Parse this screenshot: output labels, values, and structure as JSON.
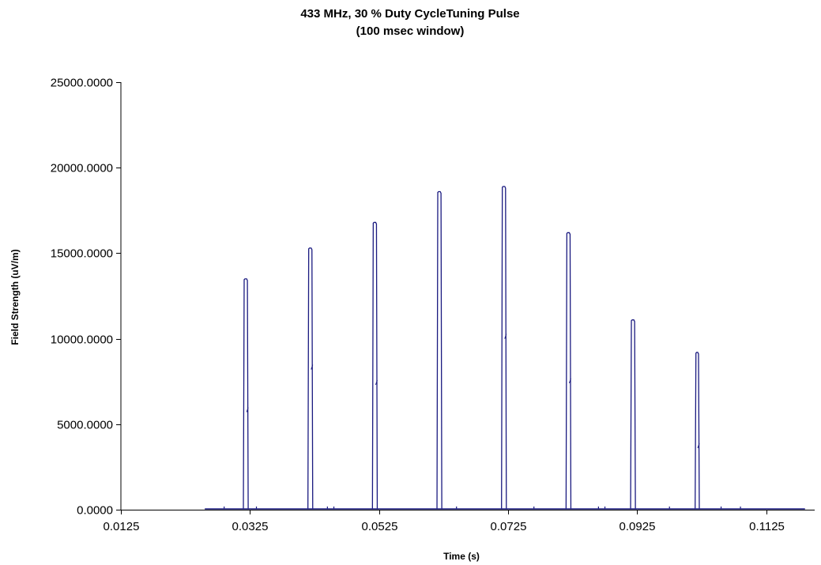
{
  "chart_data": {
    "type": "line",
    "title_lines": [
      "433 MHz, 30 % Duty CycleTuning Pulse",
      "(100 msec window)"
    ],
    "xlabel": "Time (s)",
    "ylabel": "Field Strength (uV/m)",
    "xlim": [
      0.0125,
      0.12
    ],
    "ylim": [
      0,
      25000
    ],
    "x_ticks": [
      0.0125,
      0.0325,
      0.0525,
      0.0725,
      0.0925,
      0.1125
    ],
    "x_tick_labels": [
      "0.0125",
      "0.0325",
      "0.0525",
      "0.0725",
      "0.0925",
      "0.1125"
    ],
    "y_ticks": [
      0,
      5000,
      10000,
      15000,
      20000,
      25000
    ],
    "y_tick_labels": [
      "0.0000",
      "5000.0000",
      "10000.0000",
      "15000.0000",
      "20000.0000",
      "25000.0000"
    ],
    "grid": false,
    "legend": "none",
    "series_color": "#1a1a80",
    "baseline": {
      "x_start": 0.0255,
      "x_end": 0.1185,
      "value": 0
    },
    "pulses": [
      {
        "x": 0.0316,
        "peak": 13500,
        "width": 0.0005,
        "notch": 5700
      },
      {
        "x": 0.0416,
        "peak": 15300,
        "width": 0.0005,
        "notch": 8200
      },
      {
        "x": 0.0516,
        "peak": 16800,
        "width": 0.0005,
        "notch": 7300
      },
      {
        "x": 0.0616,
        "peak": 18600,
        "width": 0.0005,
        "notch": 0
      },
      {
        "x": 0.0716,
        "peak": 18900,
        "width": 0.0005,
        "notch": 10000
      },
      {
        "x": 0.0816,
        "peak": 16200,
        "width": 0.0005,
        "notch": 7400
      },
      {
        "x": 0.0916,
        "peak": 11100,
        "width": 0.0005,
        "notch": 0
      },
      {
        "x": 0.1016,
        "peak": 9200,
        "width": 0.0004,
        "notch": 3600
      }
    ],
    "blips": [
      0.0285,
      0.0335,
      0.0445,
      0.0455,
      0.0645,
      0.0765,
      0.0865,
      0.0875,
      0.0975,
      0.1055,
      0.1085
    ]
  }
}
